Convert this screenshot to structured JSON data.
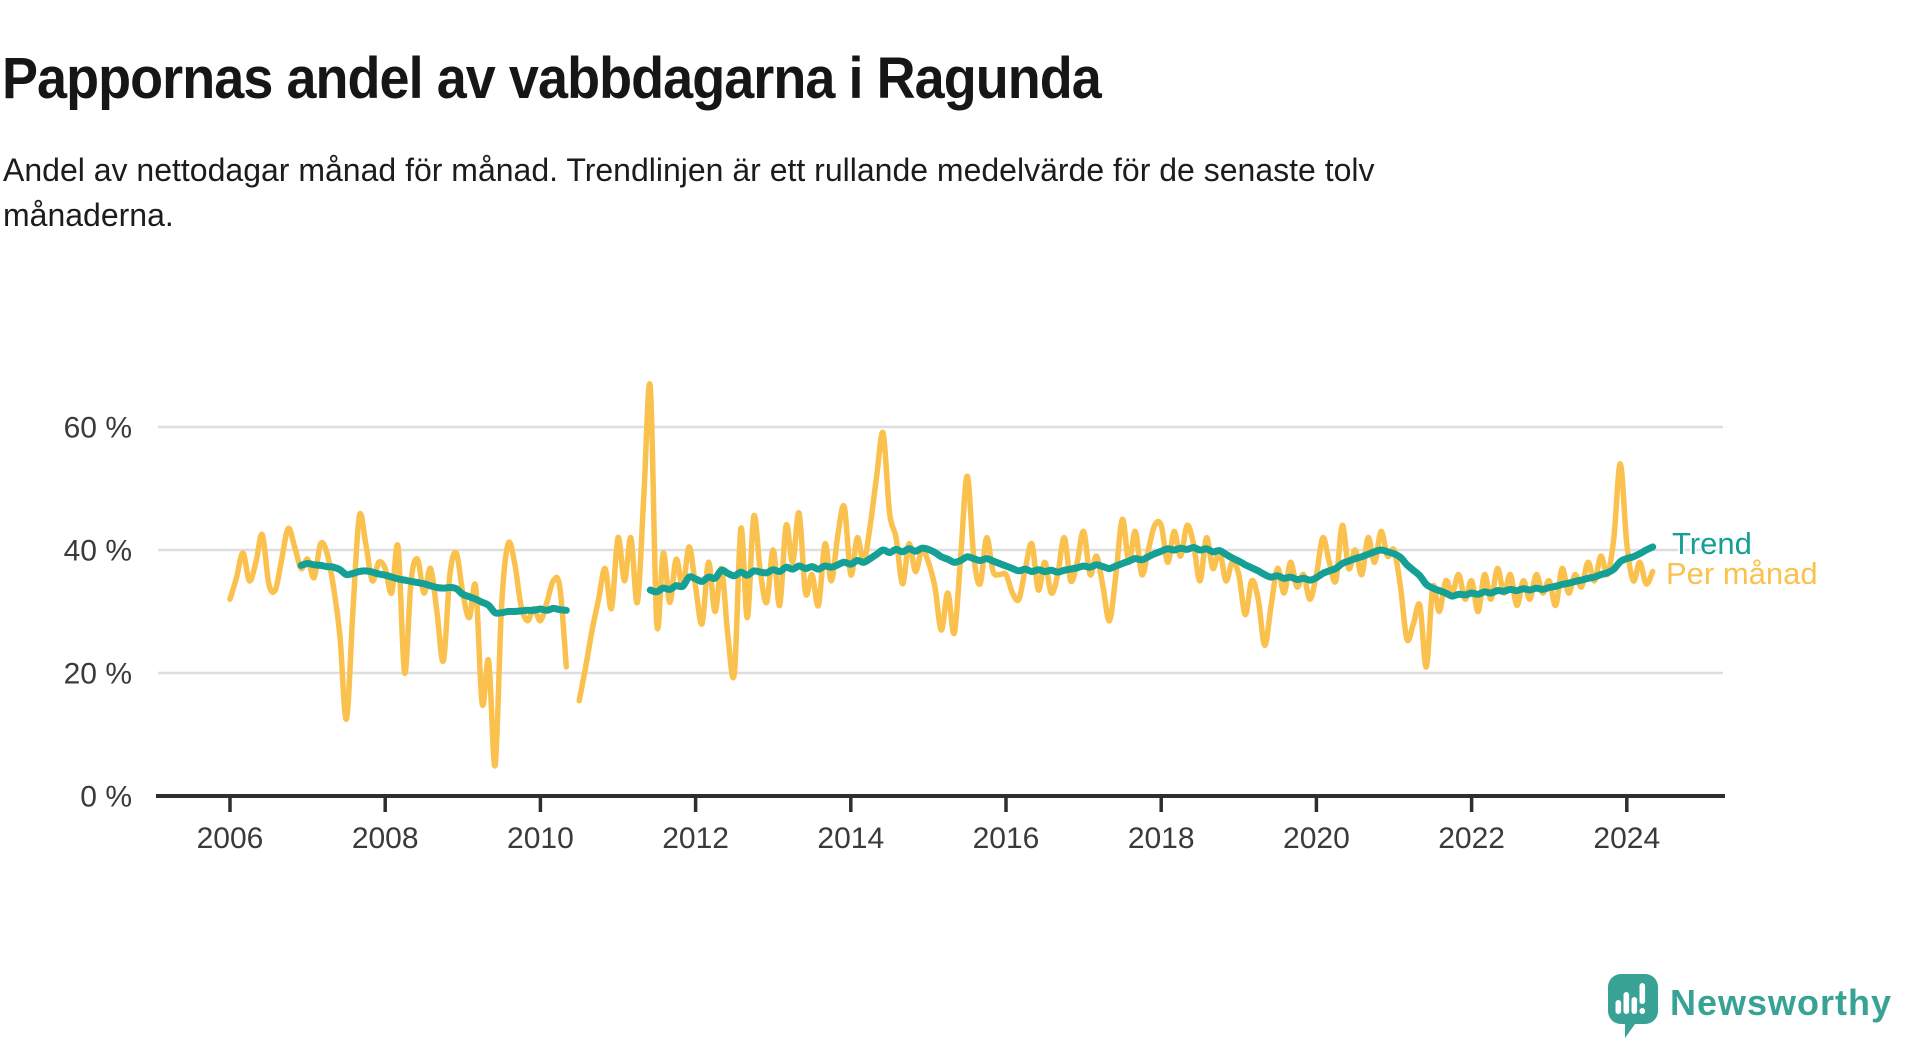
{
  "header": {
    "title": "Pappornas andel av vabbdagarna i Ragunda",
    "subtitle": "Andel av nettodagar månad för månad. Trendlinjen är ett rullande medelvärde för de senaste tolv månaderna."
  },
  "footer": {
    "brand": "Newsworthy"
  },
  "colors": {
    "trend": "#14A094",
    "per_month": "#FBC14E",
    "axis": "#2E2E2E",
    "grid": "#DEDEDE",
    "tick_text": "#3A3A3A",
    "logo": "#38A295"
  },
  "chart_data": {
    "type": "line",
    "title": "Pappornas andel av vabbdagarna i Ragunda",
    "subtitle": "Andel av nettodagar månad för månad. Trendlinjen är ett rullande medelvärde för de senaste tolv månaderna.",
    "units": "%",
    "x_start": "2006-01",
    "x_end": "2024-05",
    "x_interval": "monthly",
    "ylim": [
      0,
      70
    ],
    "ytick_values": [
      0,
      20,
      40,
      60
    ],
    "ytick_labels": [
      "0 %",
      "20 %",
      "40 %",
      "60 %"
    ],
    "xtick_labels": [
      "2006",
      "2008",
      "2010",
      "2012",
      "2014",
      "2016",
      "2018",
      "2020",
      "2022",
      "2024"
    ],
    "grid": "horizontal",
    "legend_position": "right-end-of-lines",
    "series": [
      {
        "name": "Trend",
        "color": "#14A094",
        "values": [
          null,
          null,
          null,
          null,
          null,
          null,
          null,
          null,
          null,
          null,
          null,
          37.5,
          37.8,
          37.6,
          37.5,
          37.3,
          37.2,
          36.8,
          36.0,
          36.2,
          36.5,
          36.6,
          36.4,
          36.1,
          35.9,
          35.6,
          35.3,
          35.1,
          34.9,
          34.7,
          34.5,
          34.2,
          33.9,
          33.8,
          33.9,
          33.7,
          32.8,
          32.4,
          32.0,
          31.5,
          31.0,
          29.8,
          29.8,
          30.0,
          30.0,
          30.1,
          30.2,
          30.2,
          30.4,
          30.2,
          30.5,
          30.3,
          30.2,
          null,
          null,
          null,
          null,
          null,
          null,
          null,
          null,
          null,
          null,
          null,
          null,
          33.5,
          33.2,
          33.8,
          33.6,
          34.2,
          34.1,
          35.6,
          35.3,
          34.9,
          35.6,
          35.4,
          36.7,
          36.2,
          35.8,
          36.4,
          35.9,
          36.6,
          36.4,
          36.3,
          36.8,
          36.5,
          37.2,
          36.9,
          37.4,
          37.0,
          37.3,
          36.9,
          37.4,
          37.2,
          37.6,
          38.0,
          37.7,
          38.3,
          38.0,
          38.6,
          39.3,
          40.0,
          39.6,
          40.1,
          39.7,
          40.2,
          39.8,
          40.3,
          40.1,
          39.6,
          38.9,
          38.5,
          38.0,
          38.3,
          38.9,
          38.6,
          38.3,
          38.6,
          38.2,
          37.8,
          37.4,
          37.0,
          36.6,
          36.9,
          36.5,
          36.8,
          36.5,
          36.7,
          36.4,
          36.7,
          36.9,
          37.1,
          37.4,
          37.2,
          37.6,
          37.3,
          37.0,
          37.4,
          37.8,
          38.2,
          38.6,
          38.4,
          38.9,
          39.4,
          39.8,
          40.2,
          40.0,
          40.3,
          40.1,
          40.4,
          40.0,
          40.2,
          39.7,
          39.9,
          39.3,
          38.7,
          38.2,
          37.6,
          37.1,
          36.6,
          36.0,
          35.6,
          35.8,
          35.4,
          35.6,
          35.2,
          35.4,
          35.1,
          35.5,
          36.2,
          36.6,
          37.0,
          37.8,
          38.2,
          38.6,
          38.9,
          39.3,
          39.7,
          40.0,
          39.7,
          39.4,
          38.8,
          37.6,
          36.7,
          35.8,
          34.4,
          33.8,
          33.4,
          33.0,
          32.5,
          32.8,
          32.7,
          33.0,
          32.8,
          33.2,
          33.0,
          33.4,
          33.3,
          33.6,
          33.4,
          33.7,
          33.5,
          33.8,
          33.6,
          33.9,
          34.1,
          34.4,
          34.6,
          34.9,
          35.1,
          35.4,
          35.6,
          36.0,
          36.3,
          36.9,
          38.1,
          38.6,
          38.9,
          39.4,
          40.0,
          40.5
        ]
      },
      {
        "name": "Per månad",
        "color": "#FBC14E",
        "values": [
          32,
          35.5,
          39.5,
          35,
          38,
          42.5,
          34.5,
          33.5,
          38.5,
          43.5,
          40.5,
          37,
          38.5,
          35.5,
          41,
          39.5,
          34,
          26,
          12.5,
          30,
          45.5,
          41,
          35,
          38,
          37,
          33,
          40.5,
          20,
          35,
          38.5,
          33,
          37,
          30,
          22,
          36,
          39.5,
          33,
          29,
          34,
          15,
          22,
          5,
          31,
          41,
          38,
          31,
          28.5,
          30.5,
          28.5,
          31.5,
          35,
          34,
          21,
          null,
          15.5,
          21,
          27,
          32,
          37,
          30.5,
          42,
          35,
          42,
          31.5,
          49,
          66.5,
          28,
          39.5,
          31.5,
          38.5,
          34,
          40.5,
          34,
          28,
          38,
          30,
          37,
          26,
          20,
          43.5,
          29,
          45.5,
          36.5,
          31.5,
          40,
          31,
          44,
          38,
          46,
          33,
          36,
          31,
          41,
          35,
          42.5,
          47,
          36,
          42,
          38,
          44,
          52,
          59,
          46,
          42,
          34.5,
          41,
          36.5,
          40,
          38,
          34,
          27,
          33,
          26.5,
          39,
          52,
          39,
          34.5,
          42,
          36.5,
          36,
          36,
          33,
          32,
          37,
          41,
          33.5,
          38,
          33,
          36,
          42,
          35,
          38,
          43,
          36,
          39,
          34,
          28.5,
          36,
          45,
          38,
          43,
          36,
          40,
          44,
          44,
          38,
          43,
          39,
          44,
          41,
          35,
          42,
          37,
          40,
          35,
          38,
          36,
          29.5,
          35,
          32,
          24.5,
          31,
          37,
          33,
          38,
          34,
          36,
          32,
          36,
          42,
          38,
          35,
          44,
          37,
          40,
          36,
          42,
          38,
          43,
          39,
          40,
          34,
          25.5,
          28,
          31,
          21,
          34,
          30,
          35,
          33,
          36,
          32,
          35,
          30,
          36,
          32,
          37,
          33,
          36,
          31,
          35,
          32,
          36,
          33,
          35,
          31,
          37,
          33,
          36,
          34,
          38,
          35,
          39,
          36,
          42,
          54,
          41,
          35,
          38,
          34.5,
          36.5
        ]
      }
    ]
  }
}
